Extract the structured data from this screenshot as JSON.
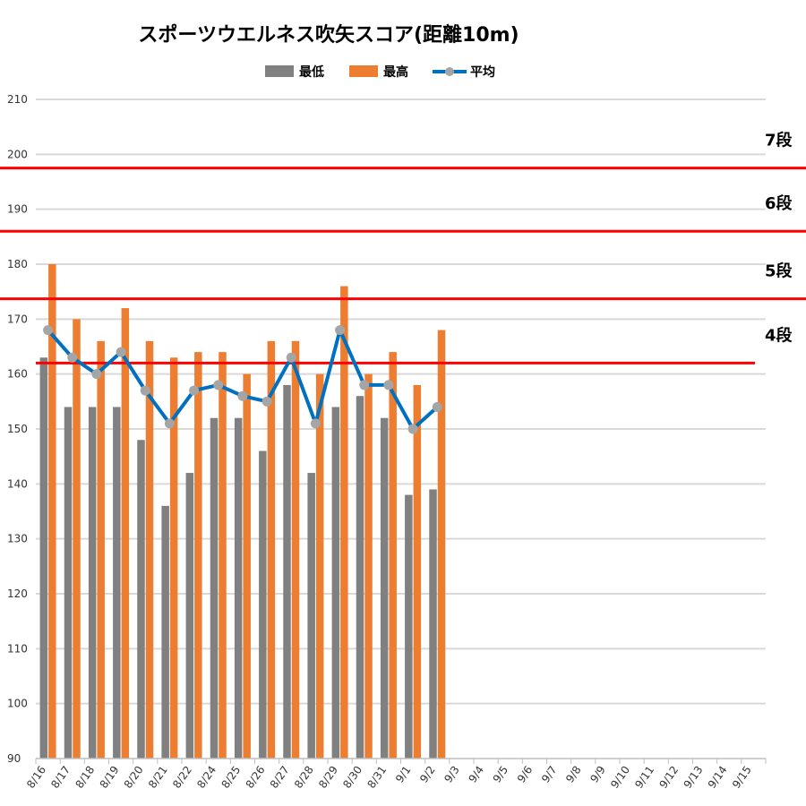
{
  "chart_data": {
    "type": "bar",
    "title": "スポーツウエルネス吹矢スコア(距離10m)",
    "xlabel": "",
    "ylabel": "",
    "ylim": [
      90,
      210
    ],
    "yticks": [
      90,
      100,
      110,
      120,
      130,
      140,
      150,
      160,
      170,
      180,
      190,
      200,
      210
    ],
    "grid": true,
    "legend_position": "top-center",
    "categories": [
      "8/16",
      "8/17",
      "8/18",
      "8/19",
      "8/20",
      "8/21",
      "8/22",
      "8/24",
      "8/25",
      "8/26",
      "8/27",
      "8/28",
      "8/29",
      "8/30",
      "8/31",
      "9/1",
      "9/2",
      "9/3",
      "9/4",
      "9/5",
      "9/6",
      "9/7",
      "9/8",
      "9/9",
      "9/10",
      "9/11",
      "9/12",
      "9/13",
      "9/14",
      "9/15"
    ],
    "series": [
      {
        "name": "最低",
        "kind": "bar",
        "color": "#808080",
        "values": [
          163,
          154,
          154,
          154,
          148,
          136,
          142,
          152,
          152,
          146,
          158,
          142,
          154,
          156,
          152,
          138,
          139,
          null,
          null,
          null,
          null,
          null,
          null,
          null,
          null,
          null,
          null,
          null,
          null,
          null
        ]
      },
      {
        "name": "最高",
        "kind": "bar",
        "color": "#ED7D31",
        "values": [
          180,
          170,
          166,
          172,
          166,
          163,
          164,
          164,
          160,
          166,
          166,
          160,
          176,
          160,
          164,
          158,
          168,
          null,
          null,
          null,
          null,
          null,
          null,
          null,
          null,
          null,
          null,
          null,
          null,
          null
        ]
      },
      {
        "name": "平均",
        "kind": "line",
        "color": "#0070C0",
        "marker_color": "#A5A5A5",
        "values": [
          168,
          163,
          160,
          164,
          157,
          151,
          157,
          158,
          156,
          155,
          163,
          151,
          168,
          158,
          158,
          150,
          154,
          null,
          null,
          null,
          null,
          null,
          null,
          null,
          null,
          null,
          null,
          null,
          null,
          null
        ]
      }
    ],
    "reference_lines": [
      {
        "label": "7段",
        "value": 197.5,
        "color": "#FF0000"
      },
      {
        "label": "6段",
        "value": 186.0,
        "color": "#FF0000"
      },
      {
        "label": "5段",
        "value": 173.7,
        "color": "#FF0000"
      },
      {
        "label": "4段",
        "value": 162.0,
        "color": "#FF0000"
      }
    ]
  }
}
